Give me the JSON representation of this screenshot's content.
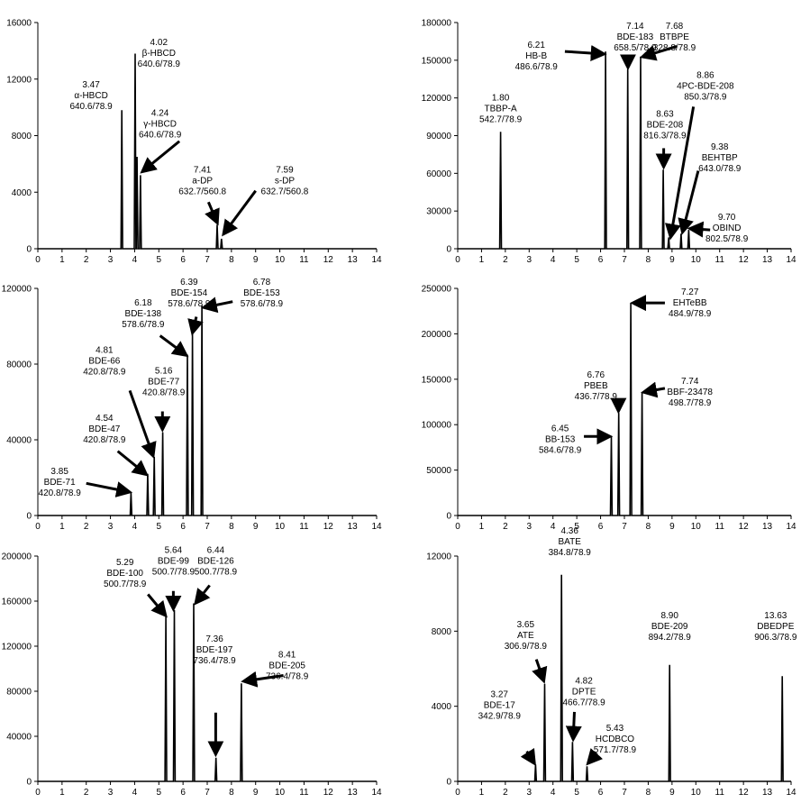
{
  "chart_data": [
    {
      "type": "line",
      "xlim": [
        0,
        14
      ],
      "ylim": [
        0,
        16000
      ],
      "xticks": [
        0,
        1,
        2,
        3,
        4,
        5,
        6,
        7,
        8,
        9,
        10,
        11,
        12,
        13,
        14
      ],
      "yticks": [
        0,
        4000,
        8000,
        12000,
        16000
      ],
      "ytick_labels": [
        "0",
        "4000",
        "8000",
        "12000",
        "16000"
      ],
      "peaks": [
        {
          "x": 3.47,
          "y": 9800
        },
        {
          "x": 4.02,
          "y": 13800
        },
        {
          "x": 4.1,
          "y": 6500
        },
        {
          "x": 4.24,
          "y": 5200
        },
        {
          "x": 7.41,
          "y": 1700
        },
        {
          "x": 7.59,
          "y": 700
        }
      ],
      "annotations": [
        {
          "lines": [
            "3.47",
            "α-HBCD",
            "640.6/78.9"
          ],
          "x": 2.2,
          "y": 11400,
          "arrow": null
        },
        {
          "lines": [
            "4.02",
            "β-HBCD",
            "640.6/78.9"
          ],
          "x": 5.0,
          "y": 14400,
          "arrow": null
        },
        {
          "lines": [
            "4.24",
            "γ-HBCD",
            "640.6/78.9"
          ],
          "x": 5.05,
          "y": 9400,
          "arrow": [
            [
              5.85,
              7600
            ],
            [
              4.35,
              5500
            ]
          ]
        },
        {
          "lines": [
            "7.41",
            "a-DP",
            "632.7/560.8"
          ],
          "x": 6.8,
          "y": 5400,
          "arrow": [
            [
              7.05,
              3300
            ],
            [
              7.4,
              1900
            ]
          ]
        },
        {
          "lines": [
            "7.59",
            "s-DP",
            "632.7/560.8"
          ],
          "x": 10.2,
          "y": 5400,
          "arrow": [
            [
              9.0,
              4100
            ],
            [
              7.7,
              1100
            ]
          ]
        }
      ]
    },
    {
      "type": "line",
      "xlim": [
        0,
        14
      ],
      "ylim": [
        0,
        180000
      ],
      "xticks": [
        0,
        1,
        2,
        3,
        4,
        5,
        6,
        7,
        8,
        9,
        10,
        11,
        12,
        13,
        14
      ],
      "yticks": [
        0,
        30000,
        60000,
        90000,
        120000,
        150000,
        180000
      ],
      "ytick_labels": [
        "0",
        "30000",
        "60000",
        "90000",
        "120000",
        "150000",
        "180000"
      ],
      "peaks": [
        {
          "x": 1.8,
          "y": 93000
        },
        {
          "x": 6.21,
          "y": 157000
        },
        {
          "x": 7.14,
          "y": 143000
        },
        {
          "x": 7.68,
          "y": 153000
        },
        {
          "x": 8.63,
          "y": 63000
        },
        {
          "x": 8.86,
          "y": 9000
        },
        {
          "x": 9.38,
          "y": 12000
        },
        {
          "x": 9.7,
          "y": 15000
        }
      ],
      "annotations": [
        {
          "lines": [
            "1.80",
            "TBBP-A",
            "542.7/78.9"
          ],
          "x": 1.8,
          "y": 118000,
          "arrow": null
        },
        {
          "lines": [
            "6.21",
            "HB-B",
            "486.6/78.9"
          ],
          "x": 3.3,
          "y": 160000,
          "arrow": [
            [
              4.5,
              157000
            ],
            [
              6.1,
              155000
            ]
          ]
        },
        {
          "lines": [
            "7.14",
            "BDE-183",
            "658.5/78.9"
          ],
          "x": 7.45,
          "y": 175000,
          "arrow": [
            [
              7.15,
              149000
            ],
            [
              7.15,
              145000
            ]
          ]
        },
        {
          "lines": [
            "7.68",
            "BTBPE",
            "328.8/78.9"
          ],
          "x": 9.1,
          "y": 175000,
          "arrow": [
            [
              9.2,
              161000
            ],
            [
              7.8,
              153000
            ]
          ]
        },
        {
          "lines": [
            "8.86",
            "4PC-BDE-208",
            "850.3/78.9"
          ],
          "x": 10.4,
          "y": 136000,
          "arrow": [
            [
              9.9,
              113000
            ],
            [
              8.95,
              10000
            ]
          ]
        },
        {
          "lines": [
            "8.63",
            "BDE-208",
            "816.3/78.9"
          ],
          "x": 8.7,
          "y": 105000,
          "arrow": [
            [
              8.65,
              80000
            ],
            [
              8.65,
              66000
            ]
          ]
        },
        {
          "lines": [
            "9.38",
            "BEHTBP",
            "643.0/78.9"
          ],
          "x": 11.0,
          "y": 79000,
          "arrow": [
            [
              10.1,
              62000
            ],
            [
              9.45,
              14000
            ]
          ]
        },
        {
          "lines": [
            "9.70",
            "OBIND",
            "802.5/78.9"
          ],
          "x": 11.3,
          "y": 23000,
          "arrow": [
            [
              10.6,
              15000
            ],
            [
              9.8,
              16000
            ]
          ]
        }
      ]
    },
    {
      "type": "line",
      "xlim": [
        0,
        14
      ],
      "ylim": [
        0,
        120000
      ],
      "xticks": [
        0,
        1,
        2,
        3,
        4,
        5,
        6,
        7,
        8,
        9,
        10,
        11,
        12,
        13,
        14
      ],
      "yticks": [
        0,
        40000,
        80000,
        120000
      ],
      "ytick_labels": [
        "0",
        "40000",
        "80000",
        "120000"
      ],
      "peaks": [
        {
          "x": 3.85,
          "y": 12000
        },
        {
          "x": 4.54,
          "y": 22000
        },
        {
          "x": 4.81,
          "y": 31000
        },
        {
          "x": 5.16,
          "y": 44000
        },
        {
          "x": 6.18,
          "y": 85000
        },
        {
          "x": 6.39,
          "y": 96000
        },
        {
          "x": 6.78,
          "y": 111000
        }
      ],
      "annotations": [
        {
          "lines": [
            "3.85",
            "BDE-71",
            "420.8/78.9"
          ],
          "x": 0.9,
          "y": 22000,
          "arrow": [
            [
              2.0,
              17000
            ],
            [
              3.75,
              12500
            ]
          ]
        },
        {
          "lines": [
            "4.54",
            "BDE-47",
            "420.8/78.9"
          ],
          "x": 2.75,
          "y": 50000,
          "arrow": [
            [
              3.3,
              34000
            ],
            [
              4.45,
              22000
            ]
          ]
        },
        {
          "lines": [
            "4.81",
            "BDE-66",
            "420.8/78.9"
          ],
          "x": 2.75,
          "y": 86000,
          "arrow": [
            [
              3.8,
              66000
            ],
            [
              4.75,
              32000
            ]
          ]
        },
        {
          "lines": [
            "5.16",
            "BDE-77",
            "420.8/78.9"
          ],
          "x": 5.2,
          "y": 75000,
          "arrow": [
            [
              5.15,
              55000
            ],
            [
              5.15,
              46000
            ]
          ]
        },
        {
          "lines": [
            "6.18",
            "BDE-138",
            "578.6/78.9"
          ],
          "x": 4.35,
          "y": 111000,
          "arrow": [
            [
              5.05,
              95000
            ],
            [
              6.1,
              85000
            ]
          ]
        },
        {
          "lines": [
            "6.39",
            "BDE-154",
            "578.6/78.9"
          ],
          "x": 6.25,
          "y": 122000,
          "arrow": [
            [
              6.55,
              105000
            ],
            [
              6.4,
              97000
            ]
          ]
        },
        {
          "lines": [
            "6.78",
            "BDE-153",
            "578.6/78.9"
          ],
          "x": 9.25,
          "y": 122000,
          "arrow": [
            [
              8.05,
              113000
            ],
            [
              6.9,
              110000
            ]
          ]
        }
      ]
    },
    {
      "type": "line",
      "xlim": [
        0,
        14
      ],
      "ylim": [
        0,
        250000
      ],
      "xticks": [
        0,
        1,
        2,
        3,
        4,
        5,
        6,
        7,
        8,
        9,
        10,
        11,
        12,
        13,
        14
      ],
      "yticks": [
        0,
        50000,
        100000,
        150000,
        200000,
        250000
      ],
      "ytick_labels": [
        "0",
        "50000",
        "100000",
        "150000",
        "200000",
        "250000"
      ],
      "peaks": [
        {
          "x": 6.45,
          "y": 87000
        },
        {
          "x": 6.76,
          "y": 113000
        },
        {
          "x": 7.27,
          "y": 234000
        },
        {
          "x": 7.74,
          "y": 136000
        }
      ],
      "annotations": [
        {
          "lines": [
            "6.45",
            "BB-153",
            "584.6/78.9"
          ],
          "x": 4.3,
          "y": 93000,
          "arrow": [
            [
              5.3,
              87000
            ],
            [
              6.35,
              87000
            ]
          ]
        },
        {
          "lines": [
            "6.76",
            "PBEB",
            "436.7/78.9"
          ],
          "x": 5.8,
          "y": 152000,
          "arrow": [
            [
              6.75,
              122000
            ],
            [
              6.75,
              116000
            ]
          ]
        },
        {
          "lines": [
            "7.27",
            "EHTeBB",
            "484.9/78.9"
          ],
          "x": 9.75,
          "y": 243000,
          "arrow": [
            [
              8.7,
              234000
            ],
            [
              7.4,
              234000
            ]
          ]
        },
        {
          "lines": [
            "7.74",
            "BBF-23478",
            "498.7/78.9"
          ],
          "x": 9.75,
          "y": 145000,
          "arrow": [
            [
              8.7,
              140000
            ],
            [
              7.85,
              136000
            ]
          ]
        }
      ]
    },
    {
      "type": "line",
      "xlim": [
        0,
        14
      ],
      "ylim": [
        0,
        200000
      ],
      "xticks": [
        0,
        1,
        2,
        3,
        4,
        5,
        6,
        7,
        8,
        9,
        10,
        11,
        12,
        13,
        14
      ],
      "yticks": [
        0,
        40000,
        80000,
        120000,
        160000,
        200000
      ],
      "ytick_labels": [
        "0",
        "40000",
        "80000",
        "120000",
        "160000",
        "200000"
      ],
      "peaks": [
        {
          "x": 5.29,
          "y": 147000
        },
        {
          "x": 5.64,
          "y": 152000
        },
        {
          "x": 6.44,
          "y": 158000
        },
        {
          "x": 7.36,
          "y": 21000
        },
        {
          "x": 8.41,
          "y": 87000
        }
      ],
      "annotations": [
        {
          "lines": [
            "5.29",
            "BDE-100",
            "500.7/78.9"
          ],
          "x": 3.6,
          "y": 192000,
          "arrow": [
            [
              4.55,
              166000
            ],
            [
              5.25,
              148000
            ]
          ]
        },
        {
          "lines": [
            "5.64",
            "BDE-99",
            "500.7/78.9"
          ],
          "x": 5.6,
          "y": 203000,
          "arrow": [
            [
              5.6,
              169000
            ],
            [
              5.6,
              154000
            ]
          ]
        },
        {
          "lines": [
            "6.44",
            "BDE-126",
            "500.7/78.9"
          ],
          "x": 7.35,
          "y": 203000,
          "arrow": [
            [
              7.1,
              174000
            ],
            [
              6.55,
              159000
            ]
          ]
        },
        {
          "lines": [
            "7.36",
            "BDE-197",
            "736.4/78.9"
          ],
          "x": 7.3,
          "y": 124000,
          "arrow": [
            [
              7.35,
              61000
            ],
            [
              7.35,
              25000
            ]
          ]
        },
        {
          "lines": [
            "8.41",
            "BDE-205",
            "736.4/78.9"
          ],
          "x": 10.3,
          "y": 110000,
          "arrow": [
            [
              10.15,
              94000
            ],
            [
              8.55,
              89000
            ]
          ]
        }
      ]
    },
    {
      "type": "line",
      "xlim": [
        0,
        14
      ],
      "ylim": [
        0,
        12000
      ],
      "xticks": [
        0,
        1,
        2,
        3,
        4,
        5,
        6,
        7,
        8,
        9,
        10,
        11,
        12,
        13,
        14
      ],
      "yticks": [
        0,
        4000,
        8000,
        12000
      ],
      "ytick_labels": [
        "0",
        "4000",
        "8000",
        "12000"
      ],
      "peaks": [
        {
          "x": 3.27,
          "y": 900
        },
        {
          "x": 3.65,
          "y": 5200
        },
        {
          "x": 4.36,
          "y": 11000
        },
        {
          "x": 4.82,
          "y": 2100
        },
        {
          "x": 5.43,
          "y": 800
        },
        {
          "x": 8.9,
          "y": 6200
        },
        {
          "x": 13.63,
          "y": 5600
        }
      ],
      "annotations": [
        {
          "lines": [
            "3.27",
            "BDE-17",
            "342.9/78.9"
          ],
          "x": 1.75,
          "y": 4500,
          "arrow": [
            [
              2.9,
              1600
            ],
            [
              3.2,
              1000
            ]
          ]
        },
        {
          "lines": [
            "3.65",
            "ATE",
            "306.9/78.9"
          ],
          "x": 2.85,
          "y": 8200,
          "arrow": [
            [
              3.3,
              6500
            ],
            [
              3.6,
              5400
            ]
          ]
        },
        {
          "lines": [
            "4.36",
            "BATE",
            "384.8/78.9"
          ],
          "x": 4.7,
          "y": 13200,
          "arrow": null
        },
        {
          "lines": [
            "4.82",
            "DPTE",
            "466.7/78.9"
          ],
          "x": 5.3,
          "y": 5200,
          "arrow": [
            [
              4.9,
              3700
            ],
            [
              4.85,
              2300
            ]
          ]
        },
        {
          "lines": [
            "5.43",
            "HCDBCO",
            "571.7/78.9"
          ],
          "x": 6.6,
          "y": 2700,
          "arrow": [
            [
              5.85,
              1500
            ],
            [
              5.5,
              1000
            ]
          ]
        },
        {
          "lines": [
            "8.90",
            "BDE-209",
            "894.2/78.9"
          ],
          "x": 8.9,
          "y": 8700,
          "arrow": null
        },
        {
          "lines": [
            "13.63",
            "DBEDPE",
            "906.3/78.9"
          ],
          "x": 13.35,
          "y": 8700,
          "arrow": null
        }
      ]
    }
  ]
}
